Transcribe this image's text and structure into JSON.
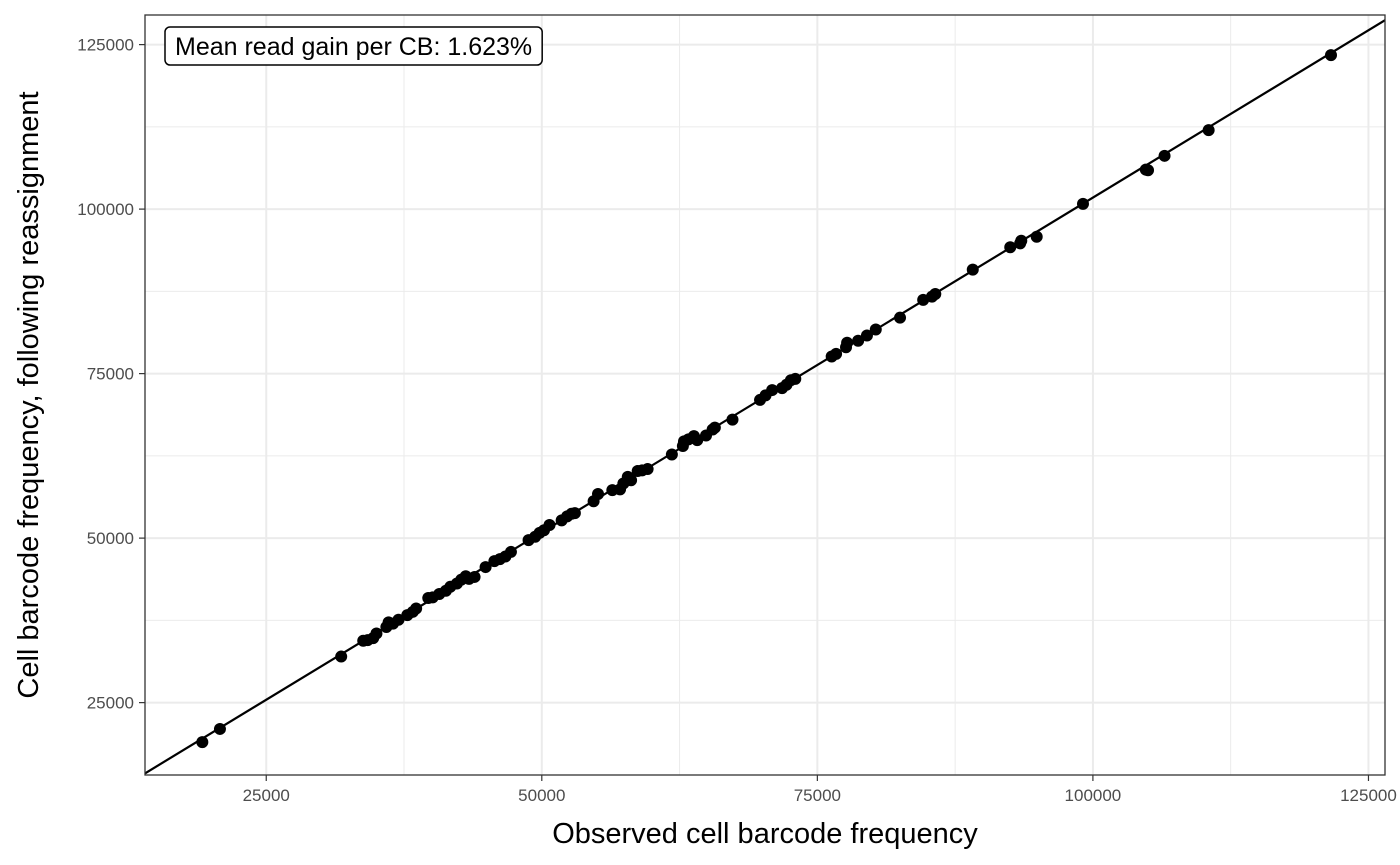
{
  "chart_data": {
    "type": "scatter",
    "xlabel": "Observed cell barcode frequency",
    "ylabel": "Cell barcode frequency, following reassignment",
    "annotation": "Mean read gain per CB: 1.623%",
    "xlim": [
      14000,
      126500
    ],
    "ylim": [
      14000,
      129500
    ],
    "x_ticks": [
      25000,
      50000,
      75000,
      100000,
      125000
    ],
    "y_ticks": [
      25000,
      50000,
      75000,
      100000,
      125000
    ],
    "x_tick_labels": [
      "25000",
      "50000",
      "75000",
      "100000",
      "125000"
    ],
    "y_tick_labels": [
      "25000",
      "50000",
      "75000",
      "100000",
      "125000"
    ],
    "grid": true,
    "theme": "bw",
    "reference_line": {
      "slope": 1.0175,
      "intercept": 0
    },
    "colors": {
      "points": "#000000",
      "line": "#000000",
      "grid": "#ebebeb",
      "panel_border": "#333333",
      "tick_text": "#4d4d4d"
    },
    "points": [
      [
        19200,
        19000
      ],
      [
        20800,
        21000
      ],
      [
        31800,
        32000
      ],
      [
        33800,
        34400
      ],
      [
        34200,
        34500
      ],
      [
        34700,
        34800
      ],
      [
        35000,
        35500
      ],
      [
        35900,
        36500
      ],
      [
        36100,
        37200
      ],
      [
        36500,
        37000
      ],
      [
        37000,
        37600
      ],
      [
        37800,
        38300
      ],
      [
        38300,
        38800
      ],
      [
        38600,
        39300
      ],
      [
        39700,
        40900
      ],
      [
        40100,
        41000
      ],
      [
        40700,
        41500
      ],
      [
        41300,
        42000
      ],
      [
        41700,
        42600
      ],
      [
        42300,
        43100
      ],
      [
        42700,
        43700
      ],
      [
        43100,
        44200
      ],
      [
        43400,
        43800
      ],
      [
        43900,
        44100
      ],
      [
        44900,
        45600
      ],
      [
        45700,
        46500
      ],
      [
        46200,
        46800
      ],
      [
        46700,
        47200
      ],
      [
        47200,
        47900
      ],
      [
        48800,
        49700
      ],
      [
        49400,
        50200
      ],
      [
        49800,
        50800
      ],
      [
        50200,
        51200
      ],
      [
        50700,
        52000
      ],
      [
        51800,
        52700
      ],
      [
        52300,
        53300
      ],
      [
        52700,
        53700
      ],
      [
        53000,
        53800
      ],
      [
        54700,
        55600
      ],
      [
        55100,
        56700
      ],
      [
        56400,
        57300
      ],
      [
        57100,
        57400
      ],
      [
        57400,
        58300
      ],
      [
        57800,
        59300
      ],
      [
        58100,
        58800
      ],
      [
        58700,
        60200
      ],
      [
        59100,
        60300
      ],
      [
        59600,
        60500
      ],
      [
        61800,
        62700
      ],
      [
        62800,
        64000
      ],
      [
        62900,
        64700
      ],
      [
        63300,
        65000
      ],
      [
        63800,
        65500
      ],
      [
        64100,
        64900
      ],
      [
        64900,
        65600
      ],
      [
        65500,
        66500
      ],
      [
        65700,
        66800
      ],
      [
        67300,
        68000
      ],
      [
        69800,
        71000
      ],
      [
        70300,
        71700
      ],
      [
        70900,
        72500
      ],
      [
        71800,
        72800
      ],
      [
        72200,
        73300
      ],
      [
        72600,
        74000
      ],
      [
        73000,
        74200
      ],
      [
        76300,
        77600
      ],
      [
        76700,
        78000
      ],
      [
        77600,
        79000
      ],
      [
        77700,
        79700
      ],
      [
        78700,
        80000
      ],
      [
        79500,
        80800
      ],
      [
        80300,
        81700
      ],
      [
        82500,
        83500
      ],
      [
        84600,
        86200
      ],
      [
        85400,
        86700
      ],
      [
        85700,
        87100
      ],
      [
        89100,
        90800
      ],
      [
        92500,
        94200
      ],
      [
        93400,
        94800
      ],
      [
        93500,
        95200
      ],
      [
        94900,
        95800
      ],
      [
        99100,
        100800
      ],
      [
        104800,
        106000
      ],
      [
        105000,
        105900
      ],
      [
        106500,
        108100
      ],
      [
        110500,
        112000
      ],
      [
        121600,
        123400
      ]
    ]
  }
}
